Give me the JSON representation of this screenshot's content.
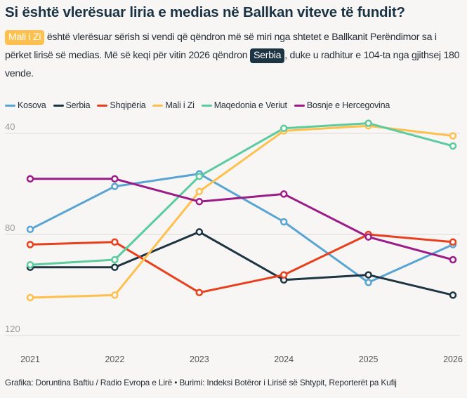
{
  "title": "Si është vlerësuar liria e medias në Ballkan viteve të fundit?",
  "subtitle": {
    "highlight_1": "Mali i Zi",
    "text_1": " është vlerësuar sërish si vendi që qëndron më së miri nga shtetet e Ballkanit Perëndimor sa i përket lirisë së medias. Më së keqi për vitin 2026 qëndron ",
    "highlight_2": "Serbia",
    "text_2": ", duke u radhitur e 104-ta nga gjithsej 180 vende.",
    "highlight_1_color": "#fec04d",
    "highlight_2_color": "#1d3443"
  },
  "footer": "Grafika: Doruntina Baftiu / Radio Evropa e Lirë • Burimi: Indeksi Botëror i Lirisë së Shtypit, Reporterët pa Kufij",
  "chart_data": {
    "type": "line",
    "title": "Si është vlerësuar liria e medias në Ballkan viteve të fundit?",
    "xlabel": "",
    "ylabel": "",
    "x": [
      "2021",
      "2022",
      "2023",
      "2024",
      "2025",
      "2026"
    ],
    "y_inverted": true,
    "ylim": [
      120,
      40
    ],
    "yticks": [
      40,
      80,
      120
    ],
    "grid": true,
    "legend_position": "top-left",
    "series": [
      {
        "name": "Kosova",
        "color": "#58a5d3",
        "values": [
          78,
          61,
          56,
          75,
          99,
          84
        ]
      },
      {
        "name": "Serbia",
        "color": "#1d3443",
        "values": [
          93,
          93,
          79,
          98,
          96,
          104
        ]
      },
      {
        "name": "Shqipëria",
        "color": "#e8401c",
        "values": [
          84,
          83,
          103,
          96,
          80,
          83
        ]
      },
      {
        "name": "Mali i Zi",
        "color": "#fec04d",
        "values": [
          105,
          104,
          63,
          39,
          37,
          41
        ]
      },
      {
        "name": "Maqedonia e Veriut",
        "color": "#5ccb9f",
        "values": [
          92,
          90,
          57,
          38,
          36,
          45
        ]
      },
      {
        "name": "Bosnje e Hercegovina",
        "color": "#9b1b87",
        "values": [
          58,
          58,
          67,
          64,
          81,
          90
        ]
      }
    ]
  }
}
